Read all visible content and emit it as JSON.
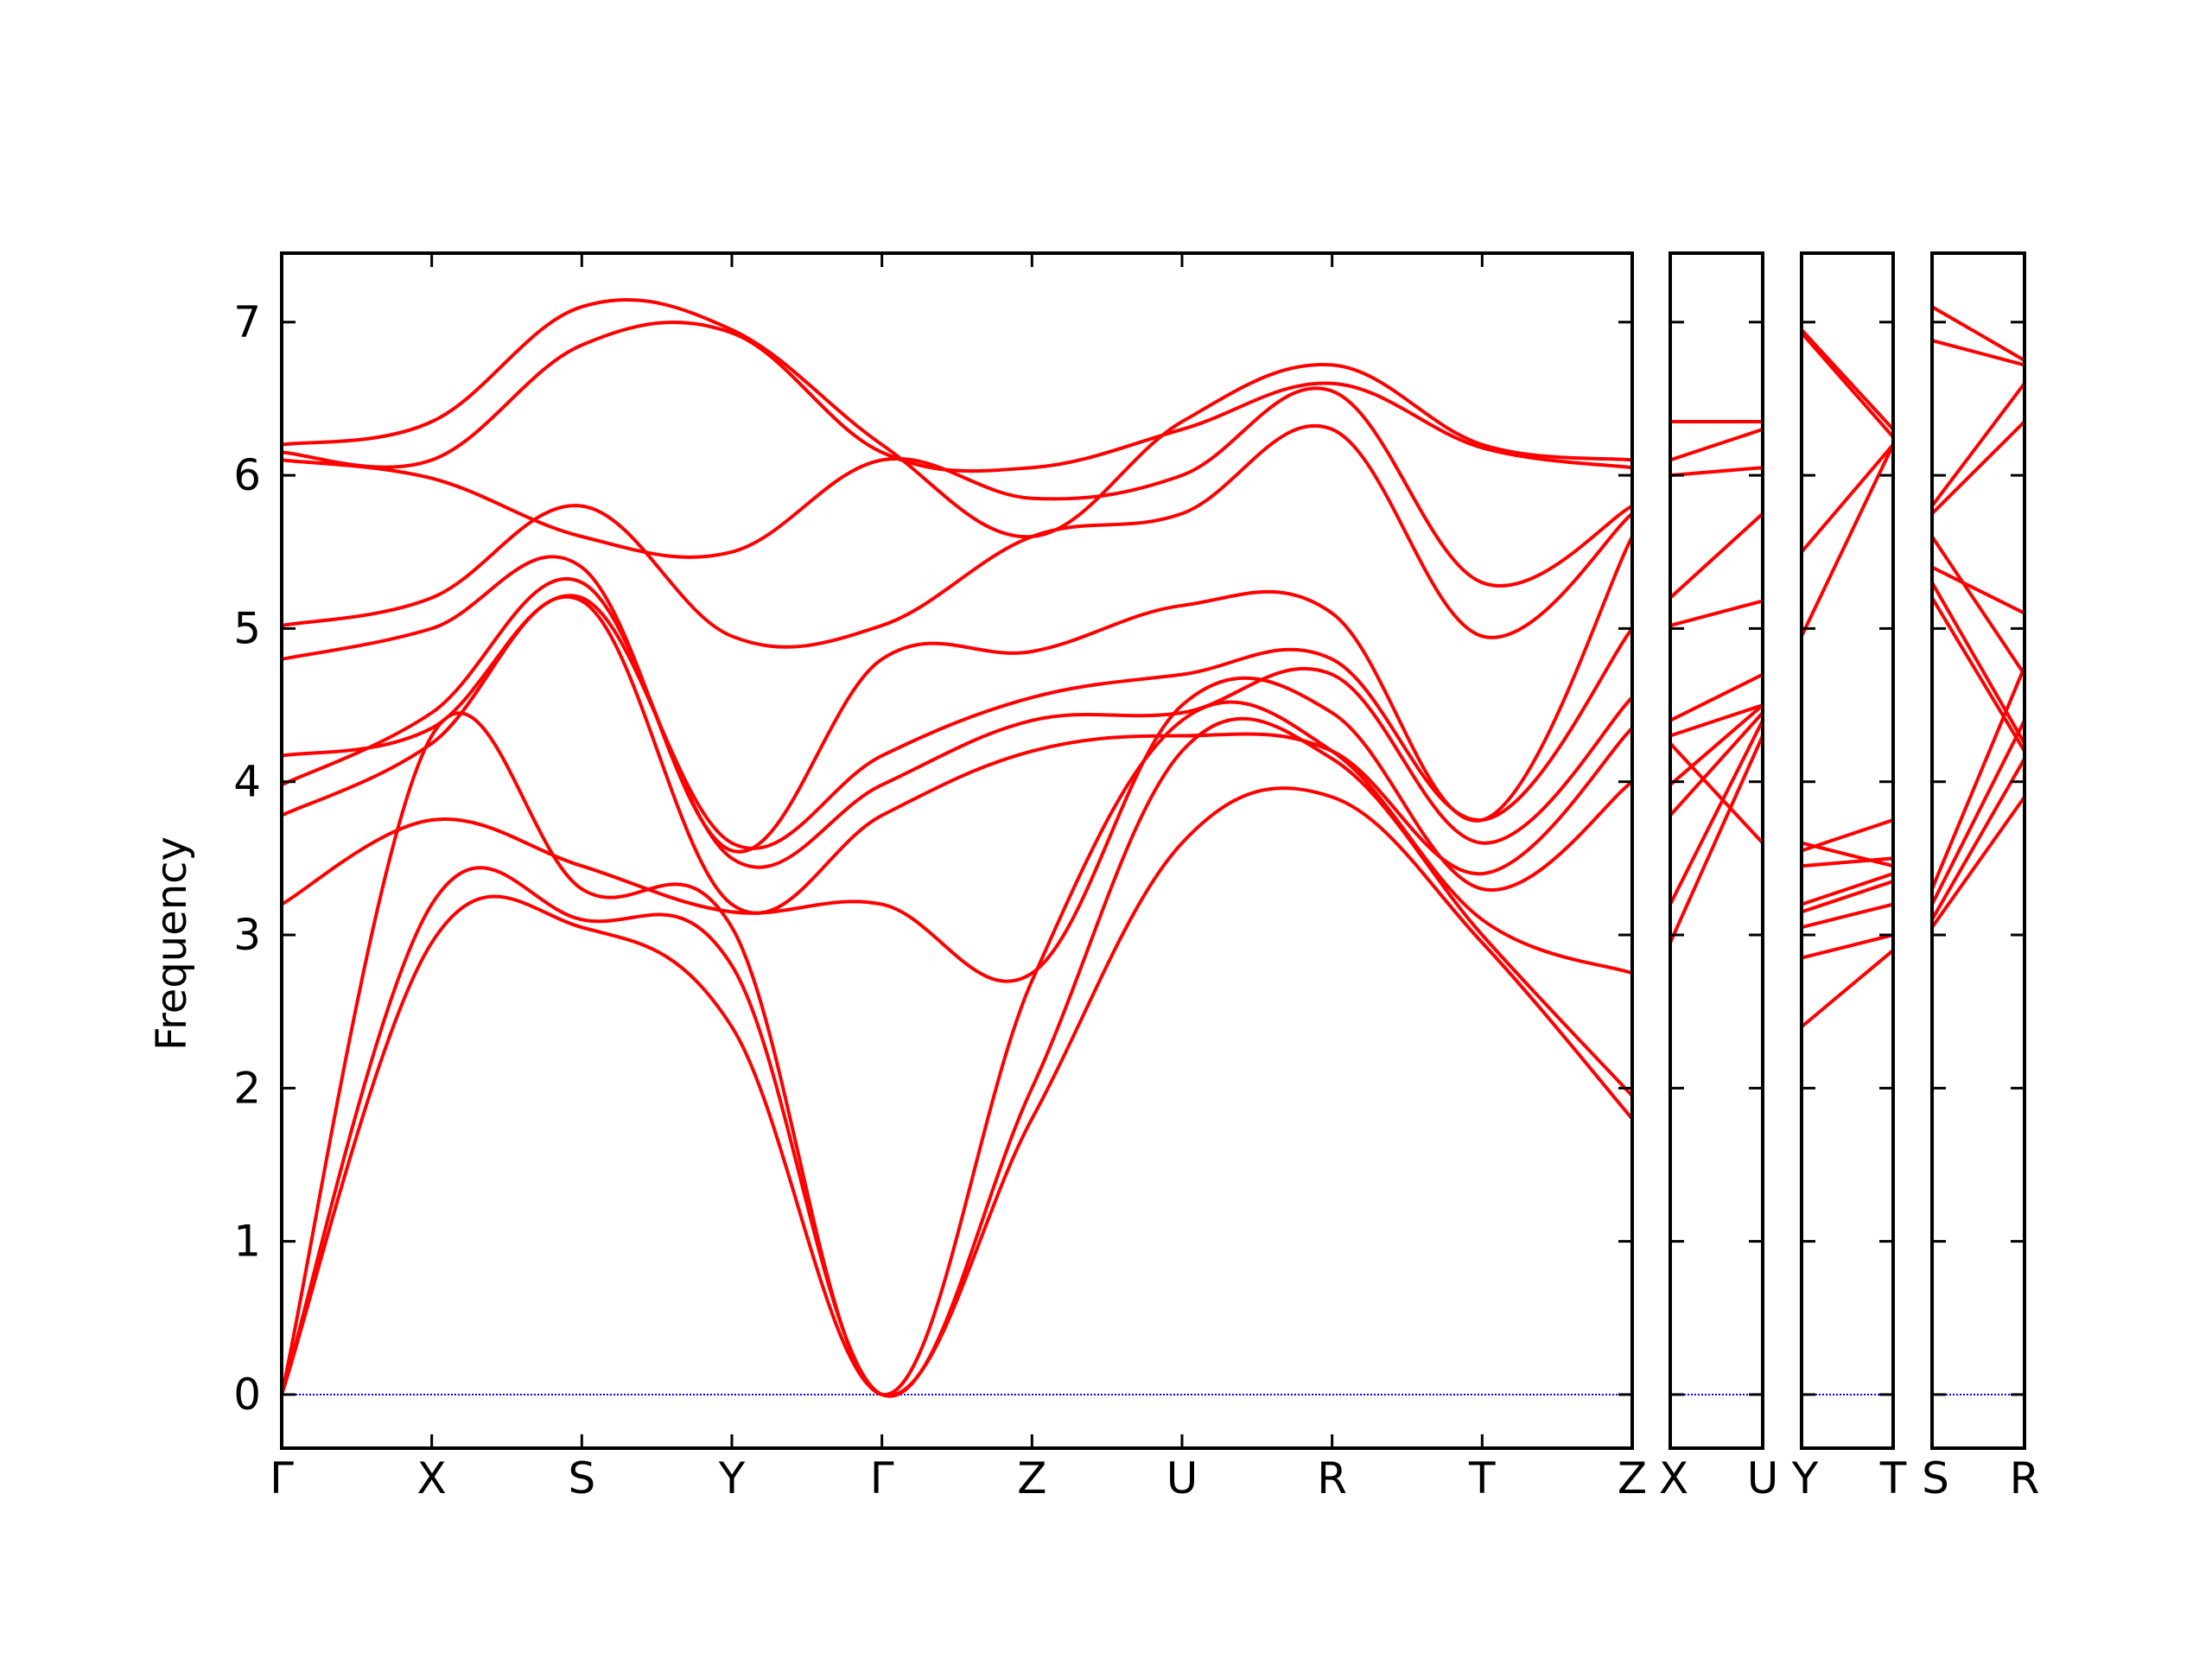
{
  "chart_data": {
    "type": "line",
    "title": "",
    "xlabel": "",
    "ylabel": "Frequency",
    "ylim": [
      -0.35,
      7.45
    ],
    "yticks": [
      0,
      1,
      2,
      3,
      4,
      5,
      6,
      7
    ],
    "grid": false,
    "legend": "none",
    "colors": {
      "bands": "#ff0000",
      "zero_line": "#0000ff",
      "frame": "#000000"
    },
    "panels": [
      {
        "labels": [
          "Γ",
          "X",
          "S",
          "Y",
          "Γ",
          "Z",
          "U",
          "R",
          "T",
          "Z"
        ],
        "series": [
          {
            "name": "",
            "values": [
              0.0,
              2.95,
              3.05,
              2.4,
              0.0,
              1.8,
              3.6,
              3.9,
              2.95,
              1.8
            ]
          },
          {
            "name": "",
            "values": [
              0.0,
              3.2,
              3.1,
              2.8,
              0.0,
              2.0,
              4.2,
              4.15,
              3.0,
              1.95
            ]
          },
          {
            "name": "",
            "values": [
              0.0,
              4.3,
              3.3,
              3.05,
              0.0,
              2.7,
              4.4,
              4.2,
              3.1,
              2.75
            ]
          },
          {
            "name": "",
            "values": [
              3.2,
              3.75,
              3.45,
              3.15,
              3.2,
              2.75,
              4.5,
              4.45,
              3.3,
              4.0
            ]
          },
          {
            "name": "",
            "values": [
              3.78,
              4.25,
              5.18,
              3.2,
              3.78,
              4.2,
              4.3,
              4.2,
              3.4,
              4.35
            ]
          },
          {
            "name": "",
            "values": [
              3.98,
              4.45,
              5.3,
              3.5,
              3.98,
              4.4,
              4.45,
              4.7,
              3.6,
              4.55
            ]
          },
          {
            "name": "",
            "values": [
              4.17,
              4.35,
              5.2,
              3.6,
              4.17,
              4.55,
              4.7,
              4.8,
              3.75,
              5.0
            ]
          },
          {
            "name": "",
            "values": [
              4.8,
              5.0,
              5.4,
              3.55,
              4.8,
              4.85,
              5.15,
              5.1,
              3.75,
              5.6
            ]
          },
          {
            "name": "",
            "values": [
              5.02,
              5.2,
              5.8,
              4.95,
              5.02,
              5.6,
              5.75,
              6.3,
              4.95,
              5.75
            ]
          },
          {
            "name": "",
            "values": [
              6.1,
              5.98,
              5.6,
              5.5,
              6.1,
              5.85,
              6.0,
              6.55,
              5.3,
              5.8
            ]
          },
          {
            "name": "",
            "values": [
              6.15,
              6.1,
              6.85,
              6.93,
              6.15,
              6.05,
              6.3,
              6.6,
              6.18,
              6.05
            ]
          },
          {
            "name": "",
            "values": [
              6.2,
              6.35,
              7.1,
              6.95,
              6.2,
              5.6,
              6.35,
              6.72,
              6.2,
              6.1
            ]
          }
        ]
      },
      {
        "labels": [
          "X",
          "U"
        ],
        "series": [
          {
            "name": "",
            "values": [
              2.95,
              4.3
            ]
          },
          {
            "name": "",
            "values": [
              3.2,
              4.4
            ]
          },
          {
            "name": "",
            "values": [
              3.78,
              4.45
            ]
          },
          {
            "name": "",
            "values": [
              3.98,
              4.5
            ]
          },
          {
            "name": "",
            "values": [
              4.25,
              3.6
            ]
          },
          {
            "name": "",
            "values": [
              4.3,
              4.5
            ]
          },
          {
            "name": "",
            "values": [
              4.4,
              4.7
            ]
          },
          {
            "name": "",
            "values": [
              5.02,
              5.18
            ]
          },
          {
            "name": "",
            "values": [
              5.2,
              5.75
            ]
          },
          {
            "name": "",
            "values": [
              6.0,
              6.05
            ]
          },
          {
            "name": "",
            "values": [
              6.1,
              6.3
            ]
          },
          {
            "name": "",
            "values": [
              6.35,
              6.35
            ]
          }
        ]
      },
      {
        "labels": [
          "Y",
          "T"
        ],
        "series": [
          {
            "name": "",
            "values": [
              2.4,
              2.9
            ]
          },
          {
            "name": "",
            "values": [
              2.85,
              3.0
            ]
          },
          {
            "name": "",
            "values": [
              3.05,
              3.2
            ]
          },
          {
            "name": "",
            "values": [
              3.15,
              3.35
            ]
          },
          {
            "name": "",
            "values": [
              3.2,
              3.4
            ]
          },
          {
            "name": "",
            "values": [
              3.45,
              3.5
            ]
          },
          {
            "name": "",
            "values": [
              3.55,
              3.75
            ]
          },
          {
            "name": "",
            "values": [
              3.6,
              3.45
            ]
          },
          {
            "name": "",
            "values": [
              4.95,
              6.2
            ]
          },
          {
            "name": "",
            "values": [
              5.5,
              6.2
            ]
          },
          {
            "name": "",
            "values": [
              6.93,
              6.25
            ]
          },
          {
            "name": "",
            "values": [
              6.95,
              6.3
            ]
          }
        ]
      },
      {
        "labels": [
          "S",
          "R"
        ],
        "series": [
          {
            "name": "",
            "values": [
              3.05,
              3.9
            ]
          },
          {
            "name": "",
            "values": [
              3.1,
              4.15
            ]
          },
          {
            "name": "",
            "values": [
              3.2,
              4.4
            ]
          },
          {
            "name": "",
            "values": [
              3.3,
              4.75
            ]
          },
          {
            "name": "",
            "values": [
              5.2,
              4.2
            ]
          },
          {
            "name": "",
            "values": [
              5.3,
              4.25
            ]
          },
          {
            "name": "",
            "values": [
              5.4,
              5.1
            ]
          },
          {
            "name": "",
            "values": [
              5.6,
              4.7
            ]
          },
          {
            "name": "",
            "values": [
              5.75,
              6.35
            ]
          },
          {
            "name": "",
            "values": [
              5.8,
              6.6
            ]
          },
          {
            "name": "",
            "values": [
              6.88,
              6.72
            ]
          },
          {
            "name": "",
            "values": [
              7.1,
              6.75
            ]
          }
        ]
      }
    ]
  }
}
